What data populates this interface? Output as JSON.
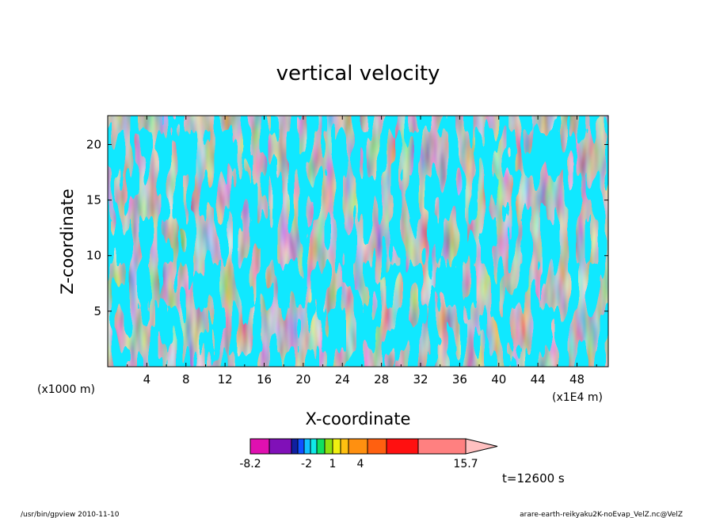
{
  "chart_data": {
    "type": "heatmap",
    "title": "vertical velocity",
    "xlabel": "X-coordinate",
    "ylabel": "Z-coordinate",
    "x_unit_left": "(x1000 m)",
    "x_unit_right": "(x1E4 m)",
    "x_ticks": [
      "4",
      "8",
      "12",
      "16",
      "20",
      "24",
      "28",
      "32",
      "36",
      "40",
      "44",
      "48"
    ],
    "y_ticks": [
      "5",
      "10",
      "15",
      "20"
    ],
    "xlim": [
      0,
      51.2
    ],
    "ylim": [
      0,
      22.6
    ],
    "colorbar": {
      "labels": [
        "-8.2",
        "-2",
        "1",
        "4",
        "15.7"
      ],
      "range": [
        -8.2,
        15.7
      ],
      "colors": [
        "#e010b0",
        "#8010b8",
        "#1020a0",
        "#1050ff",
        "#10c0ff",
        "#10e8e8",
        "#10e060",
        "#90e010",
        "#f0f010",
        "#ffc010",
        "#ff9010",
        "#ff6010",
        "#ff1010",
        "#ff8080",
        "#ffc0c0"
      ]
    },
    "field_colors": {
      "upward": "#10ef10",
      "downward": "#10e8ff",
      "contour": "#503010"
    },
    "time_label": "t=12600 s"
  },
  "footer": {
    "left": "/usr/bin/gpview  2010-11-10",
    "right": "arare-earth-reikyaku2K-noEvap_VelZ.nc@VelZ"
  }
}
